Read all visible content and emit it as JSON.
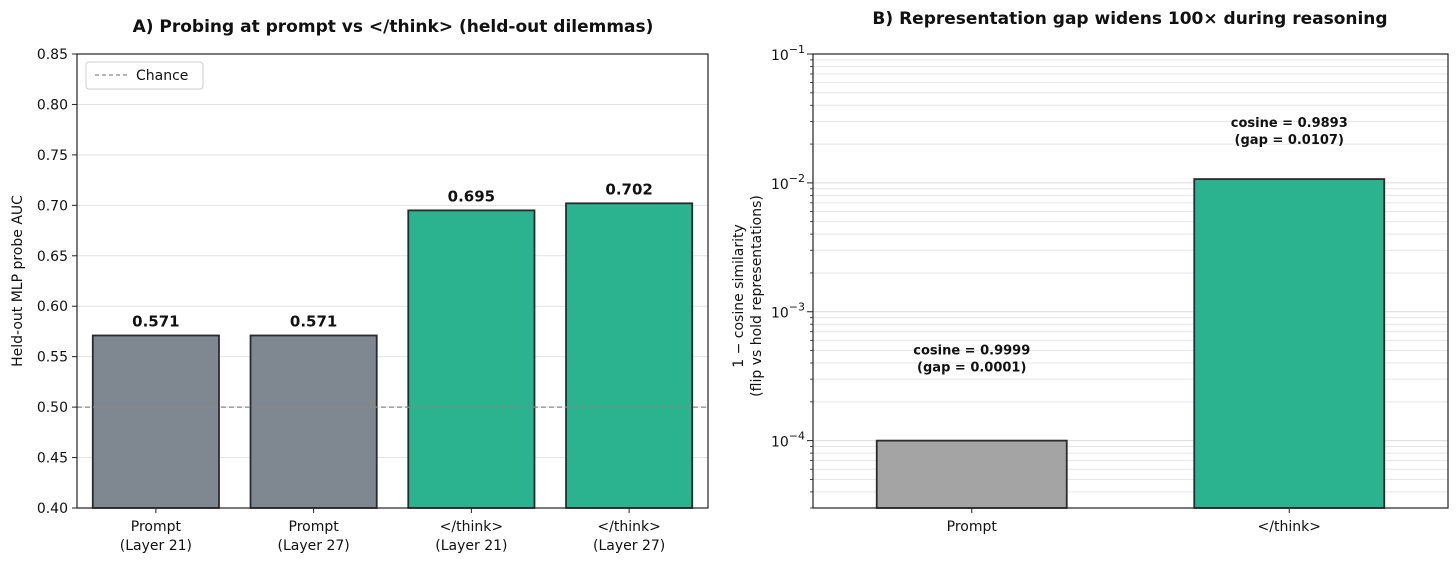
{
  "chart_data": [
    {
      "type": "bar",
      "title": "A) Probing at prompt vs </think> (held-out dilemmas)",
      "ylabel": "Held-out MLP probe AUC",
      "xlabel": "",
      "categories": [
        [
          "Prompt",
          "(Layer 21)"
        ],
        [
          "Prompt",
          "(Layer 27)"
        ],
        [
          "</think>",
          "(Layer 21)"
        ],
        [
          "</think>",
          "(Layer 27)"
        ]
      ],
      "values": [
        0.571,
        0.571,
        0.695,
        0.702
      ],
      "value_labels": [
        "0.571",
        "0.571",
        "0.695",
        "0.702"
      ],
      "bar_colors": [
        "#7f8790",
        "#7f8790",
        "#2ab38e",
        "#2ab38e"
      ],
      "ylim": [
        0.4,
        0.85
      ],
      "yticks": [
        0.4,
        0.45,
        0.5,
        0.55,
        0.6,
        0.65,
        0.7,
        0.75,
        0.8,
        0.85
      ],
      "ytick_labels": [
        "0.40",
        "0.45",
        "0.50",
        "0.55",
        "0.60",
        "0.65",
        "0.70",
        "0.75",
        "0.80",
        "0.85"
      ],
      "reference_line": {
        "value": 0.5,
        "label": "Chance",
        "style": "dashed",
        "color": "#888888"
      },
      "legend_position": "upper-left",
      "grid": "horizontal"
    },
    {
      "type": "bar",
      "title": "B) Representation gap widens 100× during reasoning",
      "ylabel": [
        "1 − cosine similarity",
        "(flip vs hold representations)"
      ],
      "xlabel": "",
      "yscale": "log",
      "categories": [
        "Prompt",
        "</think>"
      ],
      "values": [
        0.0001,
        0.0107
      ],
      "bar_colors": [
        "#a4a4a4",
        "#2ab38e"
      ],
      "annotations": [
        [
          "cosine = 0.9999",
          "(gap = 0.0001)"
        ],
        [
          "cosine = 0.9893",
          "(gap = 0.0107)"
        ]
      ],
      "ylim": [
        3e-05,
        0.1
      ],
      "ytick_labels": [
        {
          "base": "10",
          "exp": "−1",
          "value": 0.1
        },
        {
          "base": "10",
          "exp": "−2",
          "value": 0.01
        },
        {
          "base": "10",
          "exp": "−3",
          "value": 0.001
        },
        {
          "base": "10",
          "exp": "−4",
          "value": 0.0001
        }
      ],
      "grid": "horizontal-minor"
    }
  ]
}
